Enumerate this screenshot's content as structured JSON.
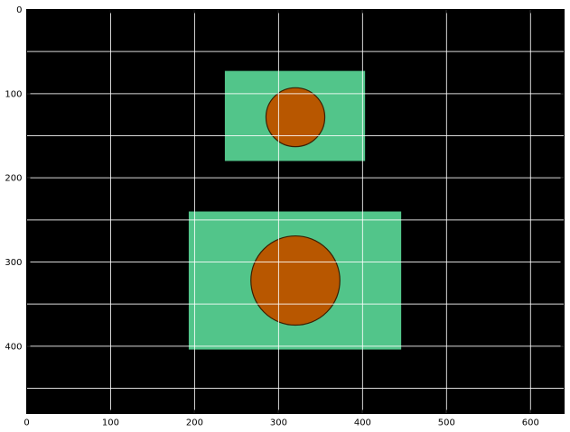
{
  "chart_data": {
    "type": "image",
    "title": "",
    "xlabel": "",
    "ylabel": "",
    "xlim": [
      0,
      640
    ],
    "ylim": [
      480,
      0
    ],
    "y_inverted": true,
    "grid": true,
    "background_color": "#000000",
    "grid_color": "#ffffff",
    "x_ticks": [
      0,
      100,
      200,
      300,
      400,
      500,
      600
    ],
    "x_tick_labels": [
      "0",
      "100",
      "200",
      "300",
      "400",
      "500",
      "600"
    ],
    "x_grid_lines": [
      100,
      200,
      300,
      400,
      500,
      600
    ],
    "y_ticks": [
      0,
      100,
      200,
      300,
      400
    ],
    "y_tick_labels": [
      "0",
      "100",
      "200",
      "300",
      "400"
    ],
    "y_grid_lines": [
      50,
      100,
      150,
      200,
      250,
      300,
      350,
      400,
      450
    ],
    "rectangles": [
      {
        "x0": 236,
        "y0": 73,
        "x1": 403,
        "y1": 180,
        "color": "#52c58a"
      },
      {
        "x0": 193,
        "y0": 240,
        "x1": 446,
        "y1": 404,
        "color": "#52c58a"
      }
    ],
    "circles": [
      {
        "cx": 320,
        "cy": 128,
        "r": 35,
        "color": "#b85700",
        "edge_color": "#3a1e00"
      },
      {
        "cx": 320,
        "cy": 322,
        "r": 53,
        "color": "#b85700",
        "edge_color": "#3a1e00"
      }
    ]
  }
}
